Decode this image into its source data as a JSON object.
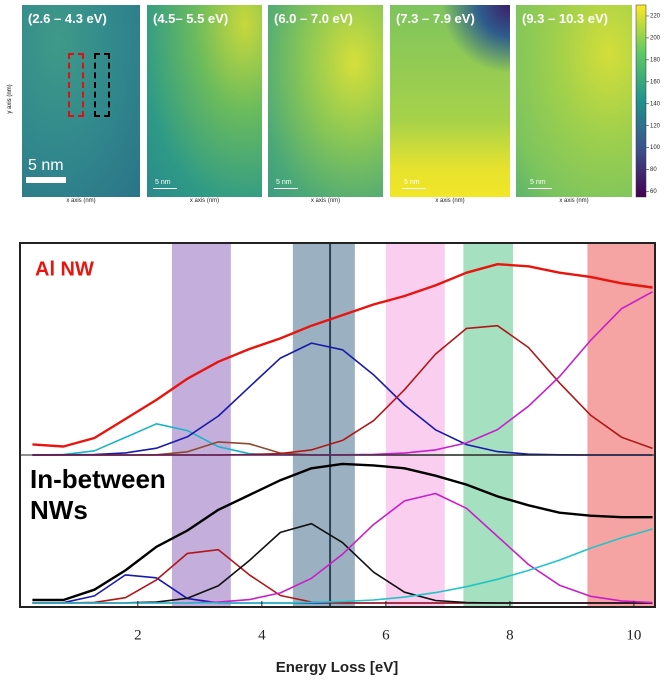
{
  "maps": {
    "panels": [
      {
        "label": "(2.6 – 4.3 eV)",
        "scale_bar": "5 nm"
      },
      {
        "label": "(4.5– 5.5 eV)",
        "scale_bar": "5 nm"
      },
      {
        "label": "(6.0 – 7.0 eV)",
        "scale_bar": "5 nm"
      },
      {
        "label": "(7.3 – 7.9 eV)",
        "scale_bar": "5 nm"
      },
      {
        "label": "(9.3 – 10.3 eV)",
        "scale_bar": "5 nm"
      }
    ],
    "x_axis_label": "x axis (nm)",
    "y_axis_label": "y axis (nm)",
    "colorbar": {
      "lim": [
        55,
        230
      ],
      "ticks": [
        60,
        80,
        100,
        120,
        140,
        160,
        180,
        200,
        220
      ]
    }
  },
  "chart_data": [
    {
      "type": "line",
      "annotation": "Al NW",
      "xlim": [
        0.1,
        10.34
      ],
      "ylim": [
        0,
        1
      ],
      "x": [
        0.3,
        0.8,
        1.3,
        1.8,
        2.3,
        2.8,
        3.3,
        3.8,
        4.3,
        4.8,
        5.3,
        5.8,
        6.3,
        6.8,
        7.3,
        7.8,
        8.3,
        8.8,
        9.3,
        9.8,
        10.3
      ],
      "series": [
        {
          "color": "#19b5c9",
          "width": 1.6,
          "values": [
            0,
            0.002,
            0.02,
            0.083,
            0.147,
            0.115,
            0.039,
            0.006,
            0.001,
            0,
            0,
            0,
            0,
            0,
            0,
            0,
            0,
            0,
            0,
            0,
            0
          ]
        },
        {
          "color": "#8b4a2b",
          "width": 1.6,
          "values": [
            0,
            0,
            0,
            0,
            0.001,
            0.015,
            0.062,
            0.053,
            0.009,
            0,
            0,
            0,
            0,
            0,
            0,
            0,
            0,
            0,
            0,
            0,
            0
          ]
        },
        {
          "color": "#1a1aa8",
          "width": 1.6,
          "values": [
            0,
            0.001,
            0.0025,
            0.01,
            0.032,
            0.086,
            0.184,
            0.321,
            0.457,
            0.528,
            0.496,
            0.379,
            0.236,
            0.119,
            0.049,
            0.016,
            0.004,
            0.001,
            0,
            0,
            0
          ]
        },
        {
          "color": "#b01818",
          "width": 1.6,
          "values": [
            0,
            0,
            0,
            0,
            0,
            0,
            0,
            0.002,
            0.007,
            0.024,
            0.069,
            0.162,
            0.308,
            0.476,
            0.597,
            0.61,
            0.507,
            0.34,
            0.188,
            0.084,
            0.031
          ]
        },
        {
          "color": "#c81fc8",
          "width": 1.6,
          "values": [
            0,
            0,
            0,
            0,
            0,
            0,
            0,
            0,
            0,
            0,
            0.001,
            0.003,
            0.009,
            0.024,
            0.057,
            0.12,
            0.23,
            0.37,
            0.54,
            0.69,
            0.77
          ]
        },
        {
          "color": "#e8150f",
          "width": 2.4,
          "values": [
            0.05,
            0.04,
            0.08,
            0.17,
            0.26,
            0.36,
            0.44,
            0.5,
            0.55,
            0.61,
            0.66,
            0.71,
            0.75,
            0.8,
            0.86,
            0.9,
            0.89,
            0.86,
            0.84,
            0.81,
            0.79
          ]
        }
      ]
    },
    {
      "type": "line",
      "annotation": "In-between NWs",
      "xlabel": "Energy Loss [eV]",
      "xlim": [
        0.1,
        10.34
      ],
      "ylim": [
        0,
        1
      ],
      "xticks": [
        2,
        4,
        6,
        8,
        10
      ],
      "bands": [
        {
          "range": [
            2.55,
            3.5
          ],
          "color": "#b9a0d6"
        },
        {
          "range": [
            4.5,
            5.5
          ],
          "color": "#8aa3b6"
        },
        {
          "range": [
            6.0,
            6.95
          ],
          "color": "#f8c6ec"
        },
        {
          "range": [
            7.25,
            8.05
          ],
          "color": "#95dcb5"
        },
        {
          "range": [
            9.25,
            10.34
          ],
          "color": "#f59393"
        }
      ],
      "marker_line": 5.1,
      "x": [
        0.3,
        0.8,
        1.3,
        1.8,
        2.3,
        2.8,
        3.3,
        3.8,
        4.3,
        4.8,
        5.3,
        5.8,
        6.3,
        6.8,
        7.3,
        7.8,
        8.3,
        8.8,
        9.3,
        9.8,
        10.3
      ],
      "series": [
        {
          "color": "#1a1ab0",
          "width": 1.6,
          "values": [
            0,
            0.002,
            0.048,
            0.19,
            0.17,
            0.03,
            0.001,
            0,
            0,
            0,
            0,
            0,
            0,
            0,
            0,
            0,
            0,
            0,
            0,
            0,
            0
          ]
        },
        {
          "color": "#b01818",
          "width": 1.6,
          "values": [
            0,
            0,
            0.004,
            0.036,
            0.156,
            0.335,
            0.36,
            0.19,
            0.051,
            0.007,
            0.001,
            0,
            0,
            0,
            0,
            0,
            0,
            0,
            0,
            0,
            0
          ]
        },
        {
          "color": "#111111",
          "width": 1.6,
          "values": [
            0,
            0,
            0,
            0.001,
            0.006,
            0.032,
            0.117,
            0.287,
            0.477,
            0.536,
            0.408,
            0.209,
            0.073,
            0.017,
            0.003,
            0,
            0,
            0,
            0,
            0,
            0
          ]
        },
        {
          "color": "#c81fc8",
          "width": 1.6,
          "values": [
            0,
            0,
            0,
            0,
            0,
            0.001,
            0.006,
            0.023,
            0.068,
            0.167,
            0.33,
            0.53,
            0.69,
            0.74,
            0.64,
            0.45,
            0.26,
            0.12,
            0.045,
            0.014,
            0.003
          ]
        },
        {
          "color": "#22c4c4",
          "width": 1.6,
          "values": [
            0,
            0,
            0,
            0,
            0,
            0,
            0,
            0,
            0,
            0.005,
            0.01,
            0.02,
            0.04,
            0.07,
            0.11,
            0.16,
            0.22,
            0.29,
            0.37,
            0.44,
            0.5
          ]
        },
        {
          "color": "#000000",
          "width": 2.4,
          "values": [
            0.02,
            0.02,
            0.09,
            0.22,
            0.38,
            0.49,
            0.63,
            0.73,
            0.83,
            0.91,
            0.94,
            0.93,
            0.91,
            0.86,
            0.8,
            0.72,
            0.66,
            0.61,
            0.59,
            0.58,
            0.58
          ]
        }
      ]
    }
  ]
}
